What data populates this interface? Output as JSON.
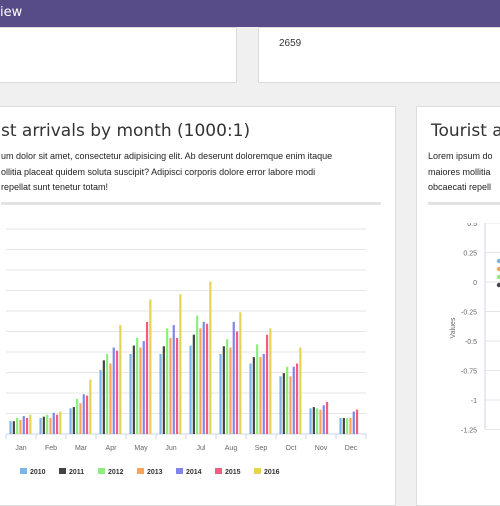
{
  "header": {
    "title": "iew"
  },
  "stats": {
    "card2_value": "2659"
  },
  "card_left": {
    "title": "st arrivals by month (1000:1)",
    "description_lines": [
      "um dolor sit amet, consectetur adipisicing elit. Ab deserunt doloremque enim itaque",
      "ollitia placeat quidem soluta suscipit? Adipisci corporis dolore error labore modi",
      "repellat sunt tenetur totam!"
    ]
  },
  "card_right": {
    "title": "Tourist a",
    "description_lines": [
      "Lorem ipsum do",
      "maiores mollitia",
      "obcaecati repell"
    ],
    "ylabel": "Values"
  },
  "colors": {
    "header": "#574b88",
    "series": [
      "#7cb5ec",
      "#434348",
      "#90ed7d",
      "#f7a35c",
      "#8085e9",
      "#f15c80",
      "#e4d354"
    ]
  },
  "chart_data": [
    {
      "type": "bar",
      "categories": [
        "Jan",
        "Feb",
        "Mar",
        "Apr",
        "May",
        "Jun",
        "Jul",
        "Aug",
        "Sep",
        "Oct",
        "Nov",
        "Dec"
      ],
      "ylim": [
        0,
        320
      ],
      "series": [
        {
          "name": "2010",
          "values": [
            20,
            25,
            40,
            100,
            125,
            125,
            138,
            125,
            110,
            90,
            40,
            25
          ]
        },
        {
          "name": "2011",
          "values": [
            20,
            27,
            42,
            115,
            138,
            137,
            155,
            137,
            120,
            95,
            42,
            25
          ]
        },
        {
          "name": "2012",
          "values": [
            25,
            30,
            55,
            125,
            150,
            165,
            185,
            148,
            140,
            105,
            40,
            25
          ]
        },
        {
          "name": "2013",
          "values": [
            22,
            25,
            48,
            110,
            135,
            150,
            165,
            135,
            120,
            90,
            38,
            25
          ]
        },
        {
          "name": "2014",
          "values": [
            28,
            33,
            62,
            135,
            145,
            170,
            175,
            175,
            125,
            105,
            45,
            35
          ]
        },
        {
          "name": "2015",
          "values": [
            25,
            30,
            60,
            130,
            175,
            150,
            172,
            160,
            155,
            110,
            50,
            38
          ]
        },
        {
          "name": "2016",
          "values": [
            30,
            35,
            85,
            170,
            210,
            218,
            238,
            190,
            165,
            135,
            0,
            0
          ]
        }
      ]
    },
    {
      "type": "line",
      "ylabel": "Values",
      "yticks": [
        "0.5",
        "0.25",
        "0",
        "-0.25",
        "-0.5",
        "-0.75",
        "-1",
        "-1.25"
      ]
    }
  ]
}
